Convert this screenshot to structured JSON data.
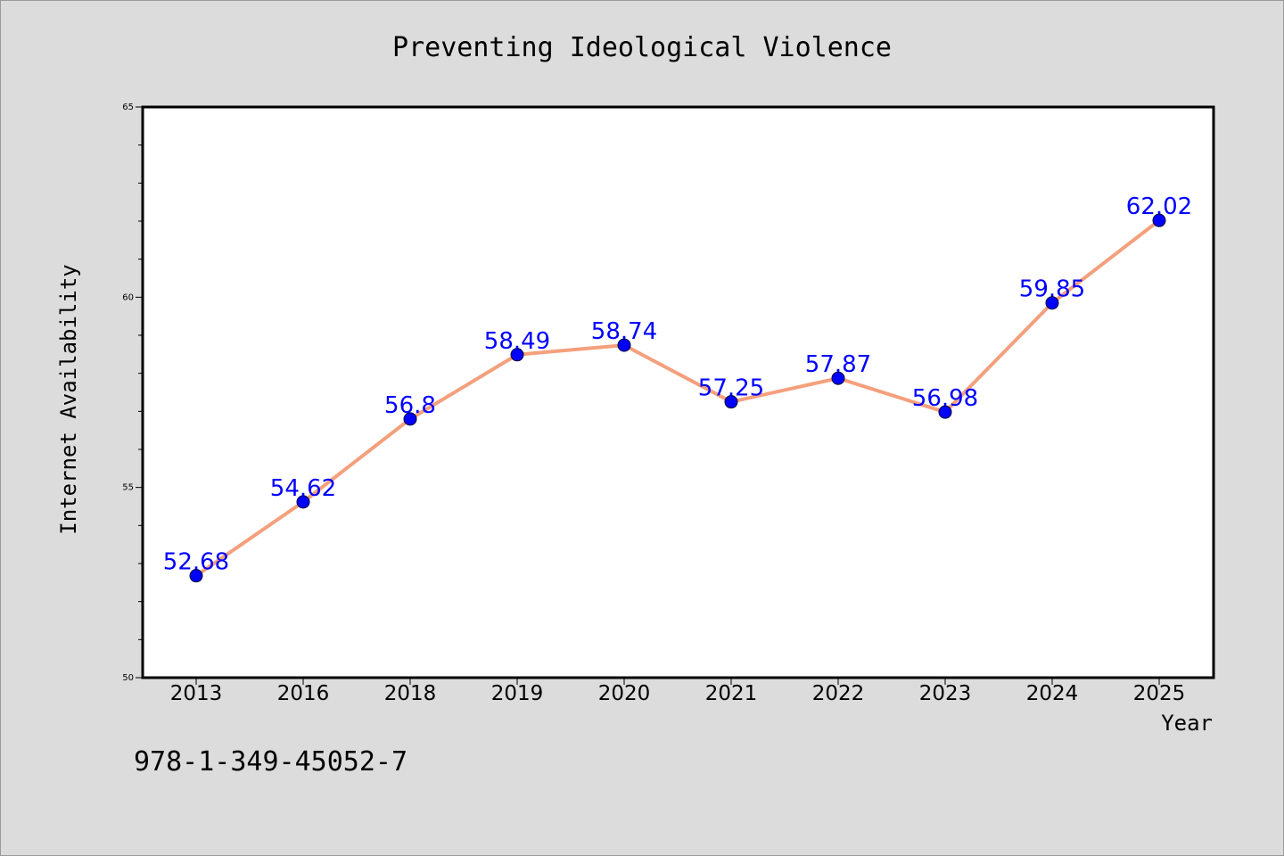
{
  "chart_data": {
    "type": "line",
    "title": "Preventing Ideological Violence",
    "xlabel": "Year",
    "ylabel": "Internet Availability",
    "categories": [
      "2013",
      "2016",
      "2018",
      "2019",
      "2020",
      "2021",
      "2022",
      "2023",
      "2024",
      "2025"
    ],
    "series": [
      {
        "values": [
          52.68,
          54.62,
          56.8,
          58.49,
          58.74,
          57.25,
          57.87,
          56.98,
          59.85,
          62.02
        ],
        "labels": [
          "52.68",
          "54.62",
          "56.8",
          "58.49",
          "58.74",
          "57.25",
          "57.87",
          "56.98",
          "59.85",
          "62.02"
        ],
        "line_color": "#f4a07c",
        "marker_color": "#0000ff"
      }
    ],
    "ylim": [
      50,
      65
    ],
    "yticks": [
      "50",
      "55",
      "60",
      "65"
    ],
    "grid": false,
    "annotation": "978-1-349-45052-7"
  },
  "colors": {
    "background": "#dcdcdc",
    "plot_background": "#ffffff",
    "line": "#f4a07c",
    "marker": "#0000ff",
    "data_label": "#0000ff"
  }
}
